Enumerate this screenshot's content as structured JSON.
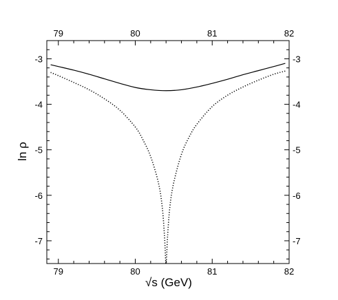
{
  "chart_data": {
    "type": "line",
    "xlabel": "√s  (GeV)",
    "ylabel": "ln ρ",
    "xlim": [
      78.85,
      82.0
    ],
    "ylim": [
      -7.5,
      -2.6
    ],
    "x_ticks": [
      79,
      80,
      81,
      82
    ],
    "x_tick_labels": [
      "79",
      "80",
      "81",
      "82"
    ],
    "y_ticks": [
      -3,
      -4,
      -5,
      -6,
      -7
    ],
    "y_tick_labels": [
      "-3",
      "-4",
      "-5",
      "-6",
      "-7"
    ],
    "ticks_mirrored": "top-and-right",
    "grid": false,
    "legend": "none",
    "series": [
      {
        "style": "solid",
        "color": "#000000",
        "x": [
          78.9,
          79.0,
          79.2,
          79.4,
          79.6,
          79.8,
          80.0,
          80.2,
          80.4,
          80.6,
          80.8,
          81.0,
          81.2,
          81.4,
          81.6,
          81.8,
          81.95
        ],
        "y": [
          -3.13,
          -3.17,
          -3.25,
          -3.34,
          -3.44,
          -3.54,
          -3.63,
          -3.68,
          -3.7,
          -3.68,
          -3.62,
          -3.54,
          -3.45,
          -3.35,
          -3.26,
          -3.17,
          -3.1
        ]
      },
      {
        "style": "dotted",
        "color": "#000000",
        "x": [
          78.9,
          79.0,
          79.2,
          79.4,
          79.6,
          79.8,
          80.0,
          80.1,
          80.2,
          80.3,
          80.35,
          80.38,
          80.4,
          80.42,
          80.45,
          80.5,
          80.6,
          80.7,
          80.8,
          81.0,
          81.2,
          81.4,
          81.6,
          81.8,
          81.95
        ],
        "y": [
          -3.3,
          -3.37,
          -3.52,
          -3.68,
          -3.88,
          -4.13,
          -4.5,
          -4.78,
          -5.15,
          -5.72,
          -6.25,
          -6.9,
          -7.5,
          -6.9,
          -6.25,
          -5.72,
          -5.1,
          -4.72,
          -4.44,
          -4.05,
          -3.8,
          -3.62,
          -3.47,
          -3.34,
          -3.27
        ]
      }
    ]
  }
}
